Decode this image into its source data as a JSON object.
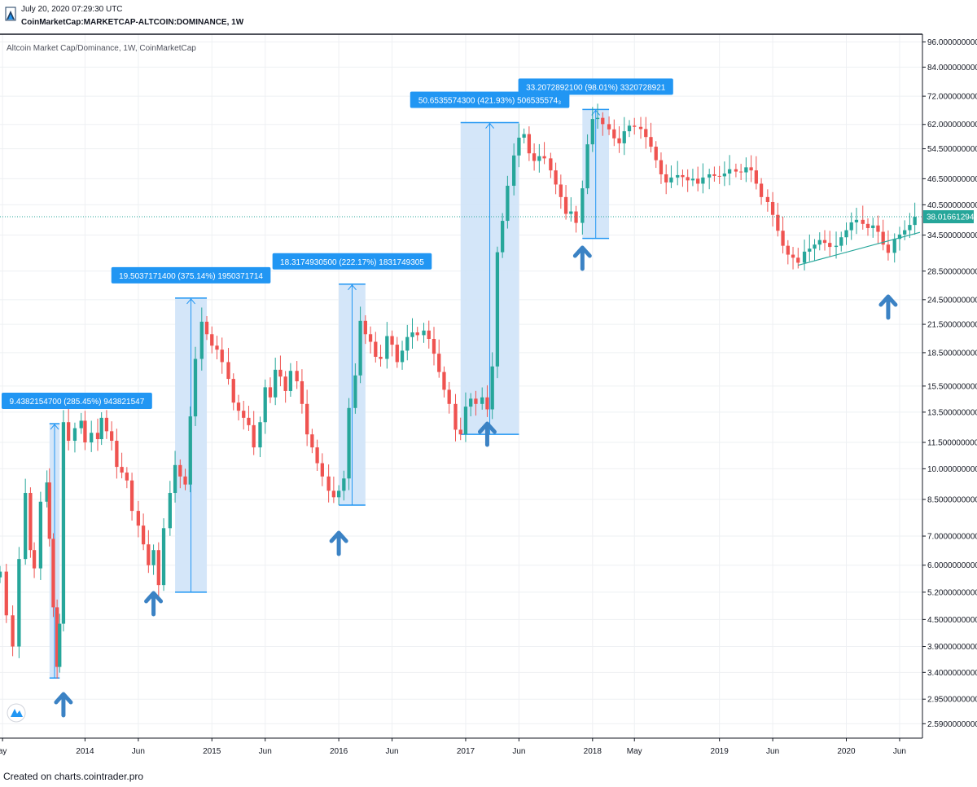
{
  "header": {
    "date": "July 20, 2020 07:29:30 UTC",
    "symbol": "CoinMarketCap:MARKETCAP-ALTCOIN:DOMINANCE, 1W",
    "logo_icon": "tradingview-logo-icon"
  },
  "footer": {
    "text": "Created on charts.cointrader.pro"
  },
  "chart_data": {
    "type": "candlestick",
    "legend": "Altcoin Market Cap/Dominance, 1W, CoinMarketCap",
    "y_scale": "log",
    "ylim": [
      2.4,
      100
    ],
    "y_ticks": [
      "96.0000000000",
      "84.0000000000",
      "72.0000000000",
      "62.0000000000",
      "54.5000000000",
      "46.5000000000",
      "40.5000000000",
      "34.5000000000",
      "28.5000000000",
      "24.5000000000",
      "21.5000000000",
      "18.5000000000",
      "15.5000000000",
      "13.5000000000",
      "11.5000000000",
      "10.0000000000",
      "8.5000000000",
      "7.0000000000",
      "6.0000000000",
      "5.2000000000",
      "4.5000000000",
      "3.9000000000",
      "3.4000000000",
      "2.9500000000",
      "2.5900000000"
    ],
    "x_ticks": [
      {
        "label": "ay",
        "date": "2013.35"
      },
      {
        "label": "2014",
        "date": "2014.0"
      },
      {
        "label": "Jun",
        "date": "2014.42"
      },
      {
        "label": "2015",
        "date": "2015.0"
      },
      {
        "label": "Jun",
        "date": "2015.42"
      },
      {
        "label": "2016",
        "date": "2016.0"
      },
      {
        "label": "Jun",
        "date": "2016.42"
      },
      {
        "label": "2017",
        "date": "2017.0"
      },
      {
        "label": "Jun",
        "date": "2017.42"
      },
      {
        "label": "2018",
        "date": "2018.0"
      },
      {
        "label": "May",
        "date": "2018.33"
      },
      {
        "label": "2019",
        "date": "2019.0"
      },
      {
        "label": "Jun",
        "date": "2019.42"
      },
      {
        "label": "2020",
        "date": "2020.0"
      },
      {
        "label": "Jun",
        "date": "2020.42"
      }
    ],
    "xlim": [
      2013.33,
      2020.6
    ],
    "last_price": "38.0166129400",
    "last_value": 38.0166,
    "up_color": "#26a69a",
    "down_color": "#ef5350",
    "box_fill": "#cfe3f8",
    "accent_color": "#2196f3",
    "arrow_color": "#3b82c4",
    "series": [
      [
        2013.33,
        5.8
      ],
      [
        2013.38,
        4.6
      ],
      [
        2013.43,
        3.9
      ],
      [
        2013.48,
        6.2
      ],
      [
        2013.53,
        8.8
      ],
      [
        2013.57,
        6.5
      ],
      [
        2013.6,
        5.9
      ],
      [
        2013.65,
        8.4
      ],
      [
        2013.7,
        9.3
      ],
      [
        2013.72,
        6.9
      ],
      [
        2013.75,
        4.8
      ],
      [
        2013.78,
        3.5
      ],
      [
        2013.8,
        4.4
      ],
      [
        2013.83,
        12.8
      ],
      [
        2013.87,
        11.6
      ],
      [
        2013.92,
        12.4
      ],
      [
        2013.97,
        12.9
      ],
      [
        2014.0,
        11.5
      ],
      [
        2014.05,
        12.1
      ],
      [
        2014.1,
        11.7
      ],
      [
        2014.13,
        13.1
      ],
      [
        2014.17,
        12.2
      ],
      [
        2014.21,
        11.6
      ],
      [
        2014.25,
        10.1
      ],
      [
        2014.29,
        9.8
      ],
      [
        2014.33,
        9.4
      ],
      [
        2014.37,
        8.0
      ],
      [
        2014.42,
        7.4
      ],
      [
        2014.46,
        6.7
      ],
      [
        2014.5,
        6.0
      ],
      [
        2014.54,
        6.5
      ],
      [
        2014.58,
        5.4
      ],
      [
        2014.62,
        7.3
      ],
      [
        2014.67,
        8.8
      ],
      [
        2014.71,
        10.2
      ],
      [
        2014.75,
        9.6
      ],
      [
        2014.79,
        9.2
      ],
      [
        2014.83,
        13.2
      ],
      [
        2014.87,
        17.9
      ],
      [
        2014.92,
        21.8
      ],
      [
        2014.96,
        20.4
      ],
      [
        2015.0,
        19.2
      ],
      [
        2015.04,
        18.8
      ],
      [
        2015.08,
        17.6
      ],
      [
        2015.13,
        16.1
      ],
      [
        2015.17,
        14.2
      ],
      [
        2015.21,
        13.6
      ],
      [
        2015.25,
        13.1
      ],
      [
        2015.29,
        12.6
      ],
      [
        2015.33,
        11.2
      ],
      [
        2015.38,
        12.8
      ],
      [
        2015.42,
        15.4
      ],
      [
        2015.46,
        14.6
      ],
      [
        2015.5,
        16.9
      ],
      [
        2015.54,
        16.3
      ],
      [
        2015.58,
        15.1
      ],
      [
        2015.62,
        16.8
      ],
      [
        2015.67,
        15.9
      ],
      [
        2015.71,
        14.1
      ],
      [
        2015.75,
        12.0
      ],
      [
        2015.79,
        11.2
      ],
      [
        2015.83,
        10.3
      ],
      [
        2015.87,
        9.6
      ],
      [
        2015.92,
        8.9
      ],
      [
        2015.96,
        8.6
      ],
      [
        2016.0,
        8.9
      ],
      [
        2016.04,
        9.5
      ],
      [
        2016.08,
        13.8
      ],
      [
        2016.13,
        16.4
      ],
      [
        2016.17,
        21.9
      ],
      [
        2016.21,
        20.4
      ],
      [
        2016.25,
        19.6
      ],
      [
        2016.29,
        18.1
      ],
      [
        2016.33,
        17.9
      ],
      [
        2016.38,
        20.2
      ],
      [
        2016.42,
        19.3
      ],
      [
        2016.46,
        17.6
      ],
      [
        2016.5,
        18.7
      ],
      [
        2016.54,
        20.1
      ],
      [
        2016.58,
        20.6
      ],
      [
        2016.62,
        20.3
      ],
      [
        2016.67,
        20.8
      ],
      [
        2016.71,
        19.9
      ],
      [
        2016.75,
        18.4
      ],
      [
        2016.79,
        16.7
      ],
      [
        2016.83,
        15.2
      ],
      [
        2016.87,
        14.1
      ],
      [
        2016.92,
        12.3
      ],
      [
        2016.96,
        12.0
      ],
      [
        2017.0,
        13.9
      ],
      [
        2017.04,
        14.5
      ],
      [
        2017.08,
        14.1
      ],
      [
        2017.13,
        14.6
      ],
      [
        2017.17,
        13.7
      ],
      [
        2017.21,
        17.2
      ],
      [
        2017.25,
        31.5
      ],
      [
        2017.29,
        37.2
      ],
      [
        2017.33,
        44.8
      ],
      [
        2017.38,
        52.6
      ],
      [
        2017.42,
        57.8
      ],
      [
        2017.46,
        58.9
      ],
      [
        2017.5,
        53.2
      ],
      [
        2017.54,
        51.1
      ],
      [
        2017.58,
        52.4
      ],
      [
        2017.62,
        51.8
      ],
      [
        2017.67,
        48.6
      ],
      [
        2017.71,
        45.1
      ],
      [
        2017.75,
        42.2
      ],
      [
        2017.79,
        38.6
      ],
      [
        2017.83,
        39.1
      ],
      [
        2017.87,
        36.8
      ],
      [
        2017.92,
        44.2
      ],
      [
        2017.96,
        55.8
      ],
      [
        2018.0,
        63.8
      ],
      [
        2018.04,
        64.2
      ],
      [
        2018.08,
        62.1
      ],
      [
        2018.13,
        60.4
      ],
      [
        2018.17,
        57.6
      ],
      [
        2018.21,
        56.1
      ],
      [
        2018.25,
        59.8
      ],
      [
        2018.29,
        61.6
      ],
      [
        2018.33,
        61.2
      ],
      [
        2018.38,
        60.5
      ],
      [
        2018.42,
        58.0
      ],
      [
        2018.46,
        55.1
      ],
      [
        2018.5,
        51.3
      ],
      [
        2018.54,
        47.6
      ],
      [
        2018.58,
        45.6
      ],
      [
        2018.62,
        46.8
      ],
      [
        2018.67,
        47.4
      ],
      [
        2018.71,
        46.9
      ],
      [
        2018.75,
        46.1
      ],
      [
        2018.79,
        46.5
      ],
      [
        2018.83,
        45.3
      ],
      [
        2018.87,
        46.8
      ],
      [
        2018.92,
        47.6
      ],
      [
        2018.96,
        47.2
      ],
      [
        2019.0,
        47.1
      ],
      [
        2019.04,
        47.8
      ],
      [
        2019.08,
        48.9
      ],
      [
        2019.13,
        48.3
      ],
      [
        2019.17,
        48.1
      ],
      [
        2019.21,
        49.4
      ],
      [
        2019.25,
        48.6
      ],
      [
        2019.29,
        45.3
      ],
      [
        2019.33,
        42.2
      ],
      [
        2019.38,
        41.1
      ],
      [
        2019.42,
        38.4
      ],
      [
        2019.46,
        35.3
      ],
      [
        2019.5,
        32.6
      ],
      [
        2019.54,
        31.1
      ],
      [
        2019.58,
        30.6
      ],
      [
        2019.62,
        29.8
      ],
      [
        2019.67,
        31.6
      ],
      [
        2019.71,
        32.1
      ],
      [
        2019.75,
        32.8
      ],
      [
        2019.79,
        33.6
      ],
      [
        2019.83,
        33.1
      ],
      [
        2019.87,
        32.4
      ],
      [
        2019.92,
        32.6
      ],
      [
        2019.96,
        34.1
      ],
      [
        2020.0,
        35.4
      ],
      [
        2020.04,
        36.9
      ],
      [
        2020.08,
        37.4
      ],
      [
        2020.13,
        36.6
      ],
      [
        2020.17,
        35.8
      ],
      [
        2020.21,
        36.3
      ],
      [
        2020.25,
        35.1
      ],
      [
        2020.29,
        32.8
      ],
      [
        2020.33,
        31.4
      ],
      [
        2020.38,
        33.8
      ],
      [
        2020.42,
        34.6
      ],
      [
        2020.46,
        35.4
      ],
      [
        2020.5,
        36.4
      ],
      [
        2020.54,
        38.0
      ]
    ],
    "measurements": [
      {
        "label": "9.4382154700 (285.45%) 943821547",
        "x0": 2013.72,
        "x1": 2013.8,
        "y0": 3.3,
        "y1": 12.7
      },
      {
        "label": "19.5037171400 (375.14%) 1950371714",
        "x0": 2014.71,
        "x1": 2014.96,
        "y0": 5.2,
        "y1": 24.7
      },
      {
        "label": "18.3174930500 (222.17%) 1831749305",
        "x0": 2016.0,
        "x1": 2016.21,
        "y0": 8.25,
        "y1": 26.6
      },
      {
        "label": "50.6535574300 (421.93%) 506535574₃",
        "x0": 2016.96,
        "x1": 2017.42,
        "y0": 12.0,
        "y1": 62.6
      },
      {
        "label": "33.2072892100 (98.01%) 3320728921",
        "x0": 2017.92,
        "x1": 2018.13,
        "y0": 33.9,
        "y1": 67.1
      }
    ],
    "trendline": {
      "x0": 2019.62,
      "y0": 29.4,
      "x1": 2020.58,
      "y1": 35.0
    },
    "arrows": [
      2013.83,
      2014.54,
      2016.0,
      2017.17,
      2017.92,
      2020.33
    ]
  }
}
